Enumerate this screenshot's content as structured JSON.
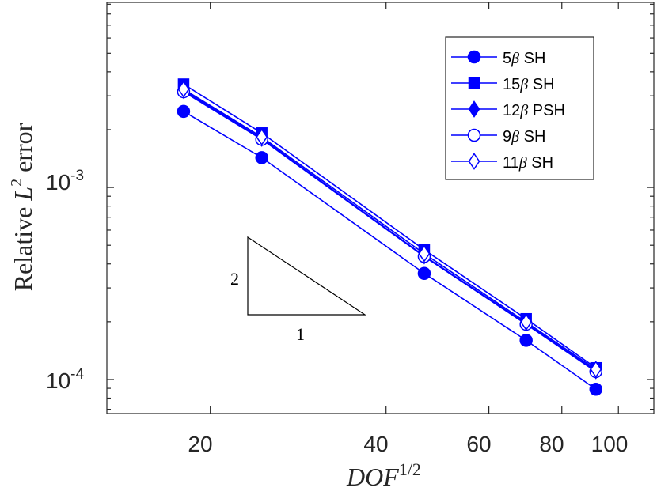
{
  "chart_data": {
    "type": "line",
    "xscale": "log",
    "yscale": "log",
    "xlim": [
      13.3,
      115
    ],
    "ylim": [
      6.65e-05,
      0.0092
    ],
    "xticks": [
      20,
      40,
      60,
      80,
      100
    ],
    "xtick_labels": [
      "20",
      "40",
      "60",
      "80",
      "100"
    ],
    "yticks": [
      0.001,
      0.0001
    ],
    "ytick_labels": [
      {
        "base": "10",
        "exp": "-3"
      },
      {
        "base": "10",
        "exp": "-4"
      }
    ],
    "xlabel": {
      "main": "DOF",
      "sup": "1/2"
    },
    "ylabel": {
      "pre": "Relative ",
      "var": "L",
      "sup": "2",
      "post": " error"
    },
    "x": [
      18.0,
      24.5,
      46.5,
      69.5,
      91.5
    ],
    "series": [
      {
        "name": "5β SH",
        "label_num": "5",
        "label_suffix": " SH",
        "marker": "circle-filled",
        "values": [
          0.00249,
          0.00143,
          0.000357,
          0.00016,
          8.9e-05
        ]
      },
      {
        "name": "15β SH",
        "label_num": "15",
        "label_suffix": " SH",
        "marker": "square-filled",
        "values": [
          0.00345,
          0.00192,
          0.000474,
          0.000207,
          0.000115
        ]
      },
      {
        "name": "12β PSH",
        "label_num": "12",
        "label_suffix": " PSH",
        "marker": "diamond-filled",
        "values": [
          0.0032,
          0.0018,
          0.00044,
          0.000196,
          0.000111
        ]
      },
      {
        "name": "9β SH",
        "label_num": "9",
        "label_suffix": " SH",
        "marker": "circle-open",
        "values": [
          0.00315,
          0.00178,
          0.000437,
          0.000194,
          0.00011
        ]
      },
      {
        "name": "11β SH",
        "label_num": "11",
        "label_suffix": " SH",
        "marker": "diamond-open",
        "values": [
          0.00325,
          0.00183,
          0.000452,
          0.000199,
          0.000113
        ]
      }
    ],
    "beta_symbol": "β",
    "slope_triangle": {
      "vertical_label": "2",
      "horizontal_label": "1"
    },
    "legend_position": "top-right",
    "line_color": "#0000ff",
    "axis_color": "#262626",
    "grid": false
  }
}
